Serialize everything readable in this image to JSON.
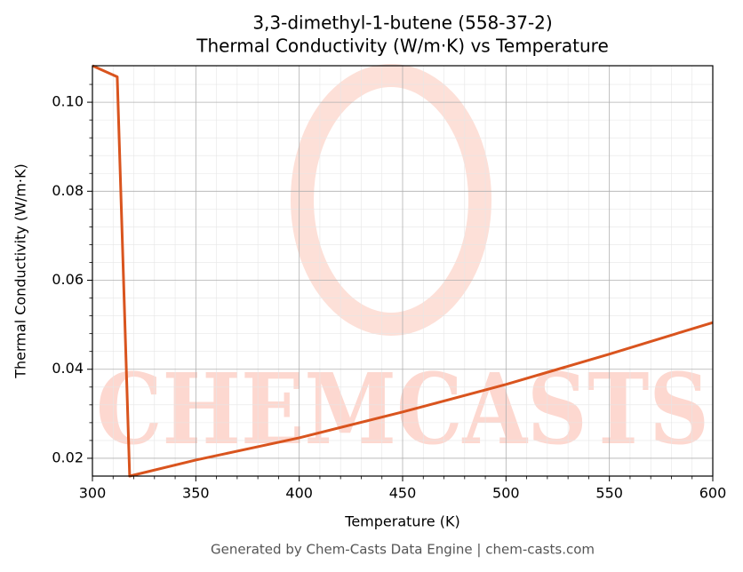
{
  "chart_data": {
    "type": "line",
    "title": "3,3-dimethyl-1-butene (558-37-2)",
    "subtitle": "Thermal Conductivity (W/m·K) vs Temperature",
    "x_label": "Temperature (K)",
    "y_label": "Thermal Conductivity (W/m·K)",
    "watermark": "CHEMCASTS",
    "footer": "Generated by Chem-Casts Data Engine | chem-casts.com",
    "x": [
      300,
      312,
      318,
      350,
      400,
      450,
      500,
      550,
      600
    ],
    "series": [
      {
        "name": "Thermal Conductivity",
        "color": "#d9541e",
        "values": [
          0.1082,
          0.1057,
          0.016,
          0.0196,
          0.0246,
          0.0304,
          0.0366,
          0.0434,
          0.0505
        ]
      }
    ],
    "xlim": [
      300,
      600
    ],
    "ylim": [
      0.016,
      0.1082
    ],
    "xticks": [
      300,
      350,
      400,
      450,
      500,
      550,
      600
    ],
    "yticks": [
      0.02,
      0.04,
      0.06,
      0.08,
      {
        "value": 0.1,
        "label": "0.10"
      }
    ],
    "xminorticks": [
      310,
      320,
      330,
      340,
      360,
      370,
      380,
      390,
      410,
      420,
      430,
      440,
      460,
      470,
      480,
      490,
      510,
      520,
      530,
      540,
      560,
      570,
      580,
      590
    ],
    "yminorticks": [
      0.024,
      0.028,
      0.032,
      0.036,
      0.044,
      0.048,
      0.052,
      0.056,
      0.064,
      0.068,
      0.072,
      0.076,
      0.084,
      0.088,
      0.092,
      0.096,
      0.104
    ],
    "grid": true
  }
}
